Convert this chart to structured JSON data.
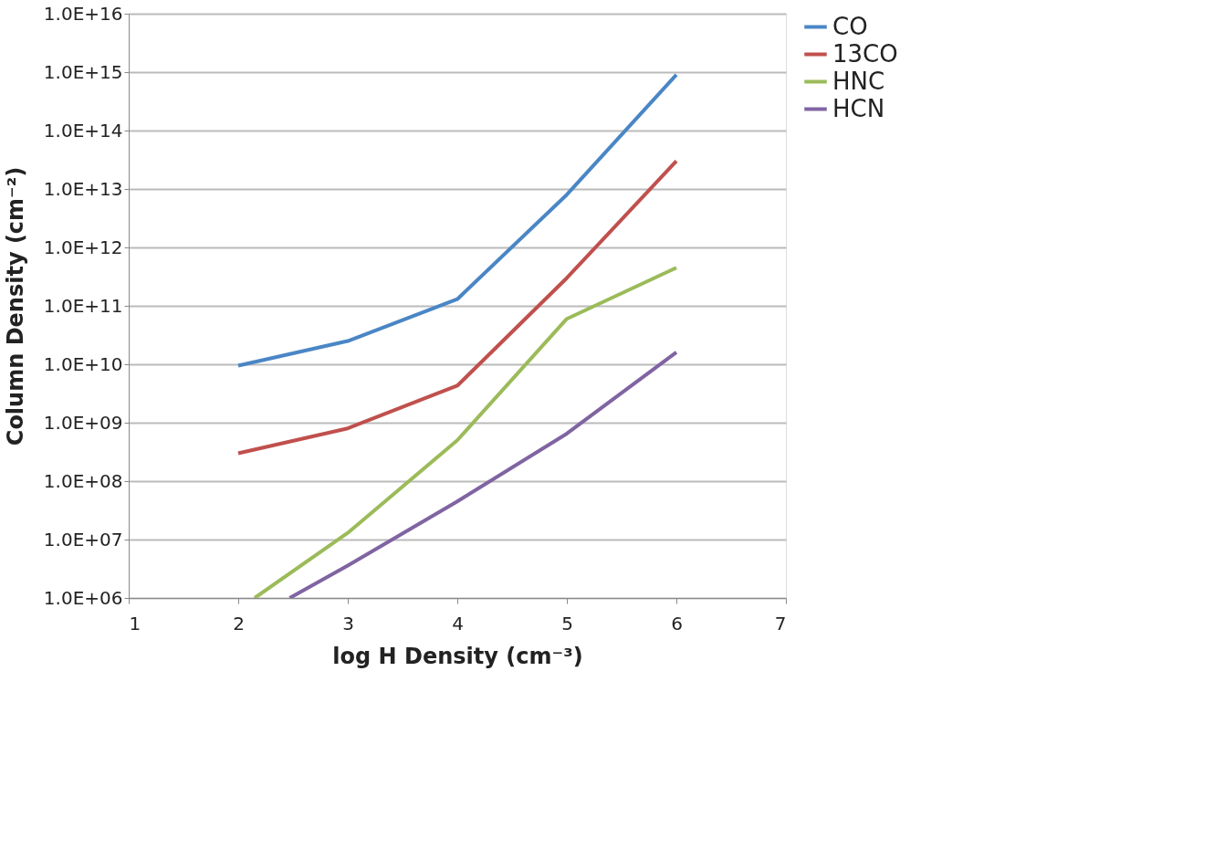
{
  "chart_data": {
    "type": "line",
    "xlabel": "log H Density (cm⁻³)",
    "ylabel": "Column Density   (cm⁻²)",
    "log": "y",
    "grid": "y",
    "legend": "right",
    "marker": "none",
    "line_style": "solid",
    "xlim": [
      1,
      7
    ],
    "xticks": [
      1,
      2,
      3,
      4,
      5,
      6,
      7
    ],
    "ylim": [
      1000000.0,
      1e+16
    ],
    "yticks": [
      {
        "value": 1000000.0,
        "label": "1.0E+06"
      },
      {
        "value": 10000000.0,
        "label": "1.0E+07"
      },
      {
        "value": 100000000.0,
        "label": "1.0E+08"
      },
      {
        "value": 1000000000.0,
        "label": "1.0E+09"
      },
      {
        "value": 10000000000.0,
        "label": "1.0E+10"
      },
      {
        "value": 100000000000.0,
        "label": "1.0E+11"
      },
      {
        "value": 1000000000000.0,
        "label": "1.0E+12"
      },
      {
        "value": 10000000000000.0,
        "label": "1.0E+13"
      },
      {
        "value": 100000000000000.0,
        "label": "1.0E+14"
      },
      {
        "value": 1000000000000000.0,
        "label": "1.0E+15"
      },
      {
        "value": 1e+16,
        "label": "1.0E+16"
      }
    ],
    "series": [
      {
        "name": "CO",
        "color": "#4a86c5",
        "x": [
          2,
          3,
          4,
          5,
          6
        ],
        "values": [
          9500000000.0,
          25000000000.0,
          130000000000.0,
          8000000000000.0,
          900000000000000.0
        ]
      },
      {
        "name": "13CO",
        "color": "#c0504d",
        "x": [
          2,
          3,
          4,
          5,
          6
        ],
        "values": [
          300000000.0,
          800000000.0,
          4300000000.0,
          300000000000.0,
          30000000000000.0
        ]
      },
      {
        "name": "HNC",
        "color": "#9bbb59",
        "x": [
          2.15,
          3,
          4,
          5,
          6
        ],
        "values": [
          1000000.0,
          13000000.0,
          500000000.0,
          60000000000.0,
          450000000000.0
        ]
      },
      {
        "name": "HCN",
        "color": "#8064a2",
        "x": [
          2.47,
          3,
          4,
          5,
          6
        ],
        "values": [
          1000000.0,
          3600000.0,
          45000000.0,
          650000000.0,
          16000000000.0
        ]
      }
    ]
  }
}
